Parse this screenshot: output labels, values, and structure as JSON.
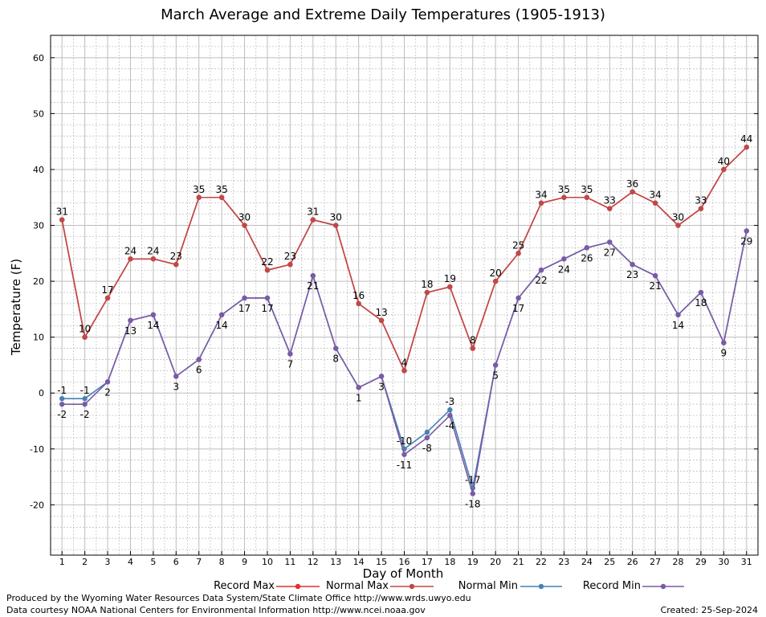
{
  "chart_data": {
    "type": "line",
    "title": "March Average and Extreme Daily Temperatures (1905-1913)",
    "xlabel": "Day of Month",
    "ylabel": "Temperature (F)",
    "x": [
      1,
      2,
      3,
      4,
      5,
      6,
      7,
      8,
      9,
      10,
      11,
      12,
      13,
      14,
      15,
      16,
      17,
      18,
      19,
      20,
      21,
      22,
      23,
      24,
      25,
      26,
      27,
      28,
      29,
      30,
      31
    ],
    "xlim": [
      0.5,
      31.5
    ],
    "ylim": [
      -29,
      64
    ],
    "yticks": [
      -20,
      -10,
      0,
      10,
      20,
      30,
      40,
      50,
      60
    ],
    "grid": true,
    "legend_position": "bottom",
    "series": [
      {
        "name": "Record Max",
        "color": "#e03030",
        "values": [
          31,
          10,
          17,
          24,
          24,
          23,
          35,
          35,
          30,
          22,
          23,
          31,
          30,
          16,
          13,
          4,
          18,
          19,
          8,
          20,
          25,
          34,
          35,
          35,
          33,
          36,
          34,
          30,
          33,
          40,
          44
        ],
        "show_labels": false
      },
      {
        "name": "Normal Max",
        "color": "#c04848",
        "values": [
          31,
          10,
          17,
          24,
          24,
          23,
          35,
          35,
          30,
          22,
          23,
          31,
          30,
          16,
          13,
          4,
          18,
          19,
          8,
          20,
          25,
          34,
          35,
          35,
          33,
          36,
          34,
          30,
          33,
          40,
          44
        ],
        "show_labels": true,
        "label_pos": "above"
      },
      {
        "name": "Normal Min",
        "color": "#4682b4",
        "values": [
          -1,
          -1,
          2,
          13,
          14,
          3,
          6,
          14,
          17,
          17,
          7,
          21,
          8,
          1,
          3,
          -10,
          -7,
          -3,
          -17,
          5,
          17,
          22,
          24,
          26,
          27,
          23,
          21,
          14,
          18,
          9,
          29
        ],
        "show_labels": true,
        "label_pos": "above",
        "labels": [
          "-1",
          "-1",
          "",
          "",
          "",
          "",
          "",
          "",
          "",
          "",
          "",
          "",
          "",
          "",
          "",
          "-10",
          "",
          "-3",
          "-17",
          "",
          "",
          "",
          "",
          "",
          "",
          "",
          "",
          "",
          "",
          "",
          ""
        ]
      },
      {
        "name": "Record Min",
        "color": "#7b5aa6",
        "values": [
          -2,
          -2,
          2,
          13,
          14,
          3,
          6,
          14,
          17,
          17,
          7,
          21,
          8,
          1,
          3,
          -11,
          -8,
          -4,
          -18,
          5,
          17,
          22,
          24,
          26,
          27,
          23,
          21,
          14,
          18,
          9,
          29
        ],
        "show_labels": true,
        "label_pos": "below",
        "labels": [
          "-2",
          "-2",
          "2",
          "13",
          "14",
          "3",
          "6",
          "14",
          "17",
          "17",
          "7",
          "21",
          "8",
          "1",
          "3",
          "-11",
          "-8",
          "-4",
          "-18",
          "5",
          "17",
          "22",
          "24",
          "26",
          "27",
          "23",
          "21",
          "14",
          "18",
          "9",
          "29"
        ]
      }
    ]
  },
  "legend": {
    "items": [
      {
        "label": "Record Max"
      },
      {
        "label": "Normal Max"
      },
      {
        "label": "Normal Min"
      },
      {
        "label": "Record Min"
      }
    ]
  },
  "footer": {
    "produced": "Produced by the Wyoming Water Resources Data System/State Climate Office http://www.wrds.uwyo.edu",
    "courtesy": "Data courtesy NOAA National Centers for Environmental Information http://www.ncei.noaa.gov",
    "created": "Created:  25-Sep-2024"
  }
}
